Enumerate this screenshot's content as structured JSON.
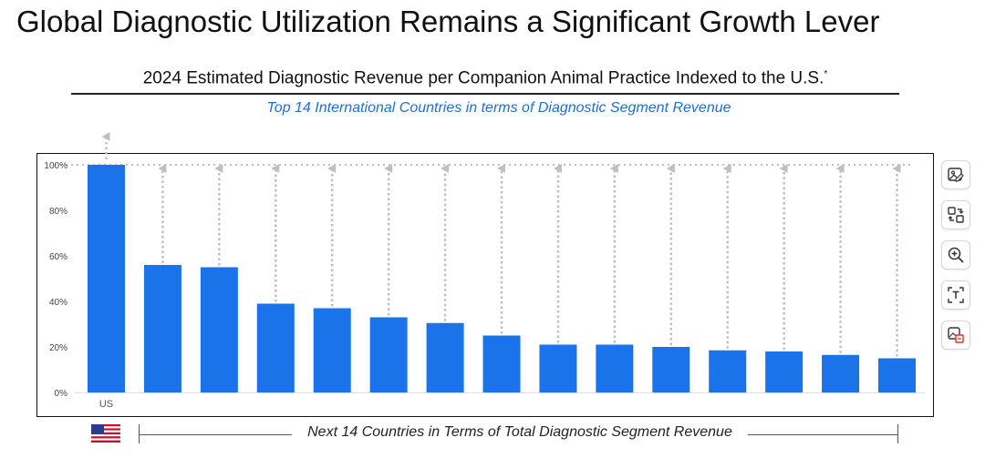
{
  "title": "Global Diagnostic Utilization Remains a Significant Growth Lever",
  "subtitle": {
    "text": "2024 Estimated Diagnostic Revenue per Companion Animal Practice Indexed to the U.S.",
    "footnote_mark": "*"
  },
  "chart_caption": "Top 14 International Countries in terms of Diagnostic Segment Revenue",
  "toolbar": {
    "icons": [
      "image-edit-icon",
      "swap-icon",
      "zoom-in-icon",
      "text-recognition-icon",
      "image-convert-icon"
    ]
  },
  "bottom_bracket": {
    "label": "Next 14 Countries in Terms of Total Diagnostic Segment Revenue",
    "flag": "us-flag-icon"
  },
  "colors": {
    "bar": "#1a73e8",
    "caption": "#1f6fd0",
    "arrow": "#bfbfbf"
  },
  "chart_data": {
    "type": "bar",
    "title": "2024 Estimated Diagnostic Revenue per Companion Animal Practice Indexed to the U.S.",
    "categories": [
      "US",
      "",
      "",
      "",
      "",
      "",
      "",
      "",
      "",
      "",
      "",
      "",
      "",
      "",
      ""
    ],
    "values": [
      100,
      56,
      55,
      39,
      37,
      33,
      30.5,
      25,
      21,
      21,
      20,
      18.5,
      18,
      16.5,
      15
    ],
    "ylim": [
      0,
      100
    ],
    "yticks": [
      0,
      20,
      40,
      60,
      80,
      100
    ],
    "ytick_labels": [
      "0%",
      "20%",
      "40%",
      "60%",
      "80%",
      "100%"
    ],
    "xlabel": "",
    "ylabel": "",
    "grid": false,
    "annotations": "dotted gray arrows from top of each non-US bar up to the 100% level"
  }
}
